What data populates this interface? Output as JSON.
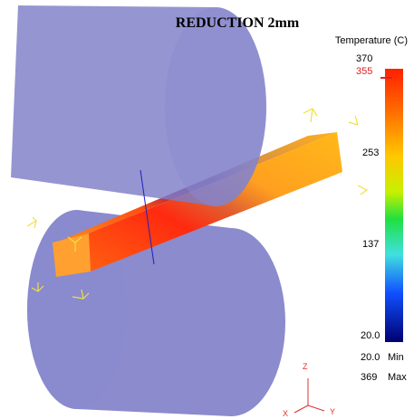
{
  "title": "REDUCTION 2mm",
  "legend": {
    "title": "Temperature (C)",
    "max_label": "370",
    "marker_label": "355",
    "ticks": [
      "253",
      "137"
    ],
    "min_label": "20.0"
  },
  "stats": {
    "min": {
      "value": "20.0",
      "label": "Min"
    },
    "max": {
      "value": "369",
      "label": "Max"
    }
  },
  "axes": {
    "z": "Z",
    "x": "X",
    "y": "Y"
  }
}
